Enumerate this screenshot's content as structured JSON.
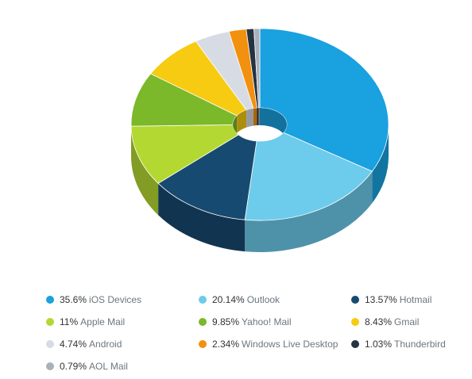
{
  "chart_data": {
    "type": "pie",
    "variant": "3d-donut",
    "legend_position": "bottom",
    "slices": [
      {
        "label": "iOS Devices",
        "percent_text": "35.6%",
        "value": 35.6,
        "color": "#19a1e0"
      },
      {
        "label": "Outlook",
        "percent_text": "20.14%",
        "value": 20.14,
        "color": "#6dcbeb"
      },
      {
        "label": "Hotmail",
        "percent_text": "13.57%",
        "value": 13.57,
        "color": "#174a70"
      },
      {
        "label": "Apple Mail",
        "percent_text": "11%",
        "value": 11.0,
        "color": "#b4d832"
      },
      {
        "label": "Yahoo! Mail",
        "percent_text": "9.85%",
        "value": 9.85,
        "color": "#7bb82a"
      },
      {
        "label": "Gmail",
        "percent_text": "8.43%",
        "value": 8.43,
        "color": "#f6cb12"
      },
      {
        "label": "Android",
        "percent_text": "4.74%",
        "value": 4.74,
        "color": "#d7dce4"
      },
      {
        "label": "Windows Live Desktop",
        "percent_text": "2.34%",
        "value": 2.34,
        "color": "#f2900f"
      },
      {
        "label": "Thunderbird",
        "percent_text": "1.03%",
        "value": 1.03,
        "color": "#243442"
      },
      {
        "label": "AOL Mail",
        "percent_text": "0.79%",
        "value": 0.79,
        "color": "#a9b2ba"
      }
    ]
  }
}
